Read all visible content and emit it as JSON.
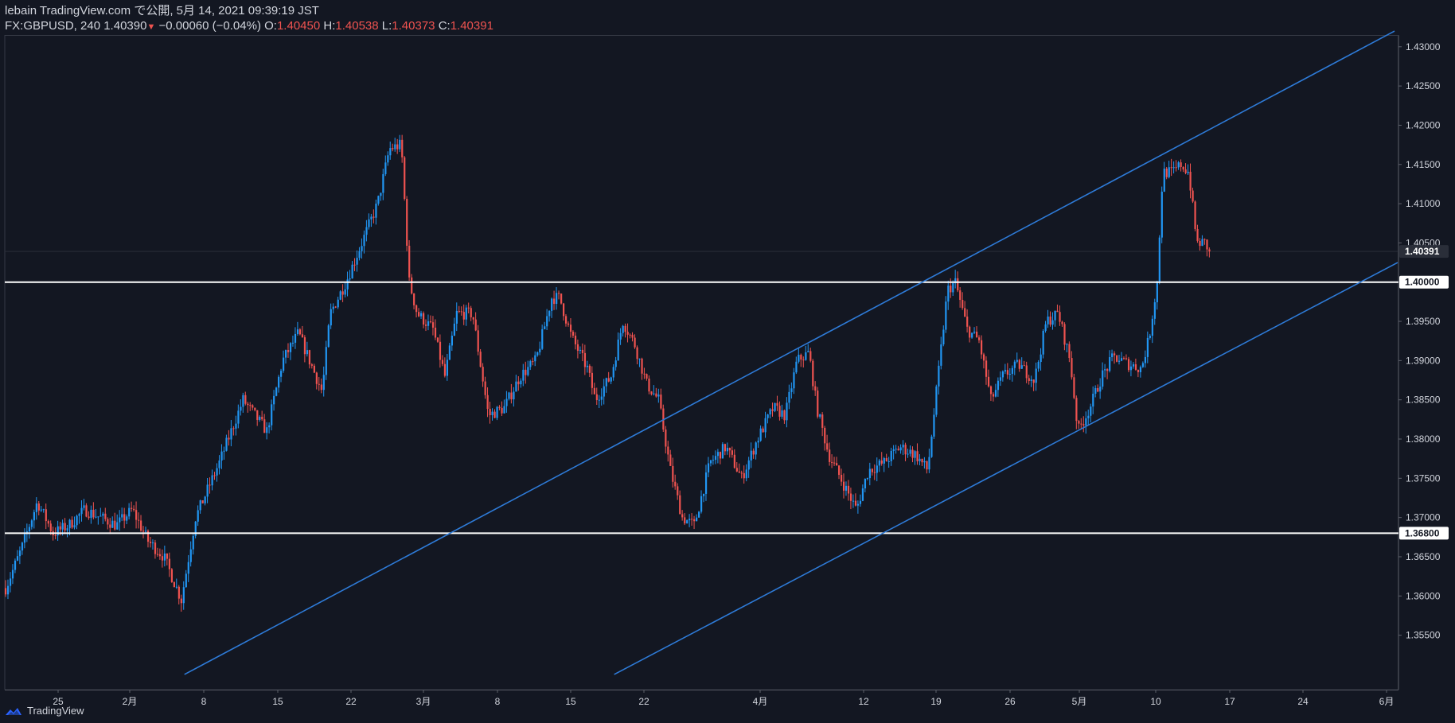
{
  "header": {
    "published": "lebain TradingView.com で公開, 5月 14, 2021 09:39:19 JST",
    "symbol": "FX:GBPUSD, 240",
    "last": "1.40390",
    "change_arrow": "▼",
    "change": "−0.00060 (−0.04%)",
    "o_label": "O:",
    "o_value": "1.40450",
    "h_label": "H:",
    "h_value": "1.40538",
    "l_label": "L:",
    "l_value": "1.40373",
    "c_label": "C:",
    "c_value": "1.40391"
  },
  "footer": {
    "brand": "TradingView",
    "logo_icon": "tradingview-logo-icon"
  },
  "colors": {
    "background": "#131722",
    "up": "#2196f3",
    "down": "#ef5350",
    "trendline": "#2962ff",
    "hline": "#ffffff",
    "text": "#d1d4dc"
  },
  "chart_data": {
    "type": "candlestick",
    "symbol": "FX:GBPUSD",
    "interval": "240",
    "ylim": [
      1.3505,
      1.4315
    ],
    "y_ticks": [
      "1.43000",
      "1.42500",
      "1.42000",
      "1.41500",
      "1.41000",
      "1.40500",
      "1.39500",
      "1.39000",
      "1.38500",
      "1.38000",
      "1.37500",
      "1.37000",
      "1.36500",
      "1.36000",
      "1.35500"
    ],
    "x_ticks": [
      "25",
      "2月",
      "8",
      "15",
      "22",
      "3月",
      "8",
      "15",
      "22",
      "4月",
      "12",
      "19",
      "26",
      "5月",
      "10",
      "17",
      "24",
      "6月"
    ],
    "price_labels": [
      {
        "text": "1.40391",
        "value": 1.40391,
        "style": "current"
      },
      {
        "text": "1.40000",
        "value": 1.4,
        "style": "line"
      },
      {
        "text": "1.36800",
        "value": 1.368,
        "style": "line"
      }
    ],
    "horizontal_lines": [
      1.4,
      1.368
    ],
    "channel_lines": [
      {
        "from": {
          "i": 227,
          "y": 1.35
        },
        "to": {
          "i": 1756,
          "y": 1.432
        }
      },
      {
        "from": {
          "i": 770,
          "y": 1.35
        },
        "to": {
          "i": 1760,
          "y": 1.4025
        }
      }
    ],
    "path": [
      {
        "i": 0,
        "y": 1.361
      },
      {
        "i": 20,
        "y": 1.366
      },
      {
        "i": 40,
        "y": 1.372
      },
      {
        "i": 60,
        "y": 1.368
      },
      {
        "i": 80,
        "y": 1.369
      },
      {
        "i": 100,
        "y": 1.371
      },
      {
        "i": 120,
        "y": 1.37
      },
      {
        "i": 140,
        "y": 1.369
      },
      {
        "i": 160,
        "y": 1.371
      },
      {
        "i": 180,
        "y": 1.367
      },
      {
        "i": 200,
        "y": 1.365
      },
      {
        "i": 222,
        "y": 1.3595
      },
      {
        "i": 240,
        "y": 1.37
      },
      {
        "i": 270,
        "y": 1.377
      },
      {
        "i": 300,
        "y": 1.385
      },
      {
        "i": 330,
        "y": 1.381
      },
      {
        "i": 350,
        "y": 1.39
      },
      {
        "i": 370,
        "y": 1.3935
      },
      {
        "i": 400,
        "y": 1.386
      },
      {
        "i": 410,
        "y": 1.396
      },
      {
        "i": 430,
        "y": 1.4
      },
      {
        "i": 450,
        "y": 1.405
      },
      {
        "i": 470,
        "y": 1.41
      },
      {
        "i": 485,
        "y": 1.417
      },
      {
        "i": 500,
        "y": 1.4175
      },
      {
        "i": 510,
        "y": 1.4
      },
      {
        "i": 520,
        "y": 1.396
      },
      {
        "i": 540,
        "y": 1.394
      },
      {
        "i": 555,
        "y": 1.388
      },
      {
        "i": 570,
        "y": 1.396
      },
      {
        "i": 590,
        "y": 1.396
      },
      {
        "i": 610,
        "y": 1.383
      },
      {
        "i": 630,
        "y": 1.384
      },
      {
        "i": 650,
        "y": 1.388
      },
      {
        "i": 670,
        "y": 1.39
      },
      {
        "i": 690,
        "y": 1.398
      },
      {
        "i": 700,
        "y": 1.398
      },
      {
        "i": 715,
        "y": 1.393
      },
      {
        "i": 735,
        "y": 1.389
      },
      {
        "i": 745,
        "y": 1.385
      },
      {
        "i": 765,
        "y": 1.388
      },
      {
        "i": 780,
        "y": 1.395
      },
      {
        "i": 795,
        "y": 1.392
      },
      {
        "i": 810,
        "y": 1.387
      },
      {
        "i": 825,
        "y": 1.385
      },
      {
        "i": 840,
        "y": 1.376
      },
      {
        "i": 855,
        "y": 1.37
      },
      {
        "i": 870,
        "y": 1.369
      },
      {
        "i": 890,
        "y": 1.377
      },
      {
        "i": 910,
        "y": 1.379
      },
      {
        "i": 930,
        "y": 1.375
      },
      {
        "i": 950,
        "y": 1.38
      },
      {
        "i": 970,
        "y": 1.384
      },
      {
        "i": 985,
        "y": 1.383
      },
      {
        "i": 1000,
        "y": 1.39
      },
      {
        "i": 1015,
        "y": 1.391
      },
      {
        "i": 1025,
        "y": 1.384
      },
      {
        "i": 1040,
        "y": 1.378
      },
      {
        "i": 1055,
        "y": 1.375
      },
      {
        "i": 1075,
        "y": 1.371
      },
      {
        "i": 1090,
        "y": 1.376
      },
      {
        "i": 1110,
        "y": 1.377
      },
      {
        "i": 1130,
        "y": 1.379
      },
      {
        "i": 1150,
        "y": 1.378
      },
      {
        "i": 1165,
        "y": 1.376
      },
      {
        "i": 1175,
        "y": 1.385
      },
      {
        "i": 1190,
        "y": 1.399
      },
      {
        "i": 1200,
        "y": 1.4
      },
      {
        "i": 1215,
        "y": 1.394
      },
      {
        "i": 1230,
        "y": 1.3925
      },
      {
        "i": 1245,
        "y": 1.385
      },
      {
        "i": 1260,
        "y": 1.388
      },
      {
        "i": 1280,
        "y": 1.3895
      },
      {
        "i": 1300,
        "y": 1.3875
      },
      {
        "i": 1315,
        "y": 1.395
      },
      {
        "i": 1330,
        "y": 1.396
      },
      {
        "i": 1345,
        "y": 1.39
      },
      {
        "i": 1355,
        "y": 1.381
      },
      {
        "i": 1370,
        "y": 1.384
      },
      {
        "i": 1385,
        "y": 1.388
      },
      {
        "i": 1400,
        "y": 1.3905
      },
      {
        "i": 1420,
        "y": 1.3895
      },
      {
        "i": 1435,
        "y": 1.389
      },
      {
        "i": 1445,
        "y": 1.393
      },
      {
        "i": 1455,
        "y": 1.4
      },
      {
        "i": 1462,
        "y": 1.414
      },
      {
        "i": 1475,
        "y": 1.414
      },
      {
        "i": 1485,
        "y": 1.415
      },
      {
        "i": 1495,
        "y": 1.414
      },
      {
        "i": 1505,
        "y": 1.405
      },
      {
        "i": 1515,
        "y": 1.405
      },
      {
        "i": 1522,
        "y": 1.4039
      }
    ]
  }
}
